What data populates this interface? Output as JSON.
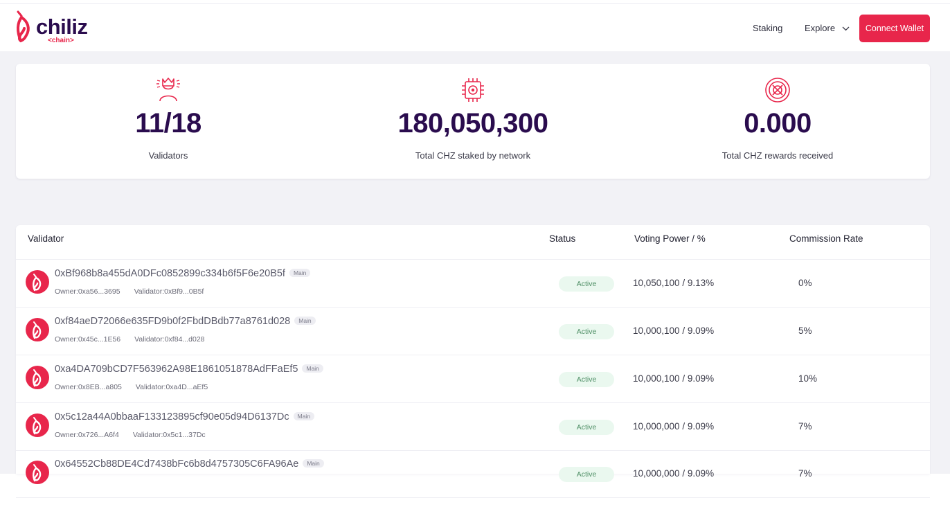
{
  "brand": {
    "name": "chiliz",
    "sub": "<chain>",
    "accent": "#e8264b",
    "dark": "#2a0c4e"
  },
  "nav": {
    "staking": "Staking",
    "explore": "Explore",
    "connect": "Connect Wallet"
  },
  "stats": [
    {
      "icon": "validator-crown-icon",
      "value": "11/18",
      "label": "Validators"
    },
    {
      "icon": "chip-icon",
      "value": "180,050,300",
      "label": "Total CHZ staked by network"
    },
    {
      "icon": "target-icon",
      "value": "0.000",
      "label": "Total CHZ rewards received"
    }
  ],
  "table": {
    "headers": {
      "validator": "Validator",
      "status": "Status",
      "voting": "Voting Power / %",
      "commission": "Commission Rate"
    },
    "rows": [
      {
        "address": "0xBf968b8a455dA0DFc0852899c334b6f5F6e20B5f",
        "badge": "Main",
        "owner": "Owner:0xa56...3695",
        "validator": "Validator:0xBf9...0B5f",
        "status": "Active",
        "voting": "10,050,100 / 9.13%",
        "commission": "0%"
      },
      {
        "address": "0xf84aeD72066e635FD9b0f2FbdDBdb77a8761d028",
        "badge": "Main",
        "owner": "Owner:0x45c...1E56",
        "validator": "Validator:0xf84...d028",
        "status": "Active",
        "voting": "10,000,100 / 9.09%",
        "commission": "5%"
      },
      {
        "address": "0xa4DA709bCD7F563962A98E1861051878AdFFaEf5",
        "badge": "Main",
        "owner": "Owner:0x8EB...a805",
        "validator": "Validator:0xa4D...aEf5",
        "status": "Active",
        "voting": "10,000,100 / 9.09%",
        "commission": "10%"
      },
      {
        "address": "0x5c12a44A0bbaaF133123895cf90e05d94D6137Dc",
        "badge": "Main",
        "owner": "Owner:0x726...A6f4",
        "validator": "Validator:0x5c1...37Dc",
        "status": "Active",
        "voting": "10,000,000 / 9.09%",
        "commission": "7%"
      },
      {
        "address": "0x64552Cb88DE4Cd7438bFc6b8d4757305C6FA96Ae",
        "badge": "Main",
        "owner": "",
        "validator": "",
        "status": "Active",
        "voting": "10,000,000 / 9.09%",
        "commission": "7%"
      }
    ]
  }
}
